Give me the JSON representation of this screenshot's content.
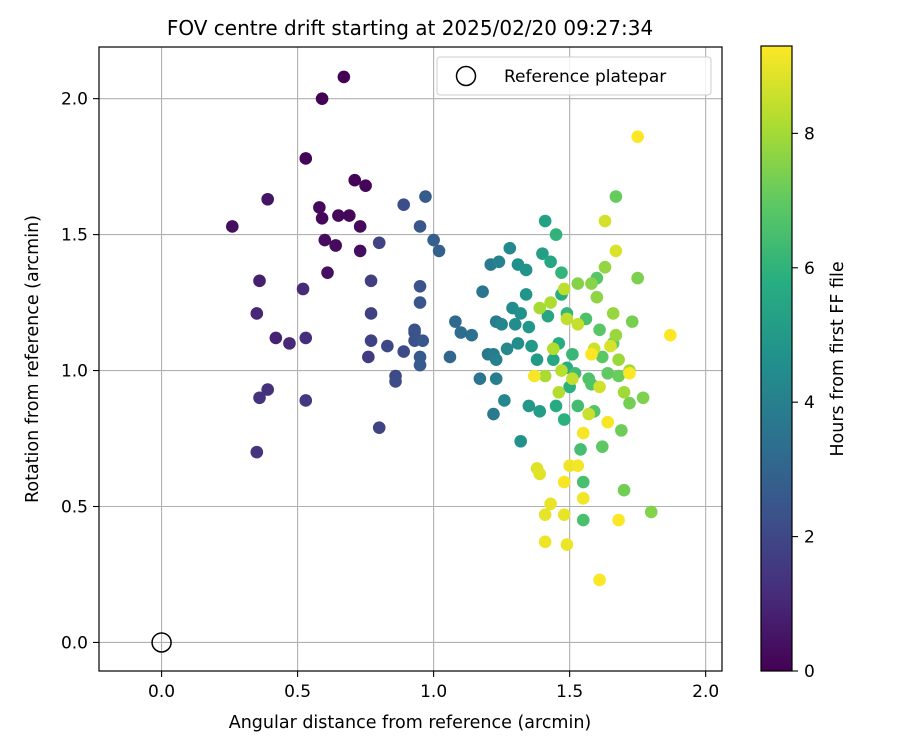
{
  "chart_data": {
    "type": "scatter",
    "title": "FOV centre drift starting at 2025/02/20 09:27:34",
    "xlabel": "Angular distance from reference (arcmin)",
    "ylabel": "Rotation from reference (arcmin)",
    "xlim": [
      -0.23,
      2.06
    ],
    "ylim": [
      -0.105,
      2.19
    ],
    "x_ticks": [
      0.0,
      0.5,
      1.0,
      1.5,
      2.0
    ],
    "x_tick_labels": [
      "0.0",
      "0.5",
      "1.0",
      "1.5",
      "2.0"
    ],
    "y_ticks": [
      0.0,
      0.5,
      1.0,
      1.5,
      2.0
    ],
    "y_tick_labels": [
      "0.0",
      "0.5",
      "1.0",
      "1.5",
      "2.0"
    ],
    "grid": true,
    "legend": {
      "placement": "top-right",
      "entries": [
        {
          "label": "Reference platepar",
          "marker": "hollow-circle",
          "color": "#000000"
        }
      ]
    },
    "reference_point": {
      "x": 0.0,
      "y": 0.0
    },
    "colorbar": {
      "label": "Hours from first FF file",
      "colormap": "viridis",
      "range": [
        0,
        9.3
      ],
      "ticks": [
        0,
        2,
        4,
        6,
        8
      ],
      "tick_labels": [
        "0",
        "2",
        "4",
        "6",
        "8"
      ]
    },
    "points": [
      [
        0.59,
        2.0,
        0.02
      ],
      [
        0.67,
        2.08,
        0.03
      ],
      [
        0.53,
        1.78,
        0.08
      ],
      [
        0.71,
        1.7,
        0.1
      ],
      [
        0.75,
        1.68,
        0.12
      ],
      [
        0.69,
        1.57,
        0.15
      ],
      [
        0.65,
        1.57,
        0.18
      ],
      [
        0.58,
        1.6,
        0.2
      ],
      [
        0.59,
        1.56,
        0.22
      ],
      [
        0.73,
        1.53,
        0.24
      ],
      [
        0.6,
        1.48,
        0.28
      ],
      [
        0.64,
        1.46,
        0.3
      ],
      [
        0.73,
        1.44,
        0.33
      ],
      [
        0.26,
        1.53,
        0.36
      ],
      [
        0.61,
        1.36,
        0.4
      ],
      [
        0.39,
        1.63,
        0.5
      ],
      [
        0.36,
        1.33,
        0.8
      ],
      [
        0.42,
        1.12,
        0.9
      ],
      [
        0.35,
        1.21,
        1.0
      ],
      [
        0.47,
        1.1,
        1.05
      ],
      [
        0.52,
        1.3,
        1.1
      ],
      [
        0.53,
        1.12,
        1.2
      ],
      [
        0.39,
        0.93,
        1.3
      ],
      [
        0.36,
        0.9,
        1.35
      ],
      [
        0.35,
        0.7,
        1.4
      ],
      [
        0.53,
        0.89,
        1.5
      ],
      [
        0.76,
        1.05,
        1.6
      ],
      [
        0.77,
        1.33,
        1.7
      ],
      [
        0.77,
        1.21,
        1.75
      ],
      [
        0.77,
        1.11,
        1.8
      ],
      [
        0.8,
        1.47,
        1.85
      ],
      [
        0.8,
        0.79,
        1.9
      ],
      [
        0.83,
        1.09,
        2.0
      ],
      [
        0.86,
        0.98,
        2.05
      ],
      [
        0.86,
        0.96,
        2.1
      ],
      [
        0.89,
        1.07,
        2.15
      ],
      [
        0.89,
        1.61,
        2.2
      ],
      [
        0.93,
        1.15,
        2.25
      ],
      [
        0.93,
        1.11,
        2.3
      ],
      [
        0.93,
        1.14,
        2.35
      ],
      [
        0.95,
        1.31,
        2.4
      ],
      [
        0.95,
        1.25,
        2.45
      ],
      [
        0.95,
        1.53,
        2.5
      ],
      [
        0.96,
        1.11,
        2.55
      ],
      [
        0.95,
        1.05,
        2.6
      ],
      [
        0.95,
        1.02,
        2.65
      ],
      [
        0.97,
        1.64,
        2.7
      ],
      [
        1.0,
        1.48,
        2.8
      ],
      [
        1.02,
        1.44,
        2.85
      ],
      [
        1.06,
        1.05,
        3.1
      ],
      [
        1.08,
        1.18,
        3.2
      ],
      [
        1.1,
        1.14,
        3.3
      ],
      [
        1.14,
        1.13,
        3.4
      ],
      [
        1.17,
        0.97,
        3.6
      ],
      [
        1.18,
        1.29,
        3.65
      ],
      [
        1.2,
        1.06,
        3.7
      ],
      [
        1.21,
        1.39,
        3.75
      ],
      [
        1.22,
        0.84,
        3.8
      ],
      [
        1.22,
        1.06,
        3.85
      ],
      [
        1.23,
        1.18,
        3.9
      ],
      [
        1.23,
        0.97,
        3.95
      ],
      [
        1.23,
        1.04,
        4.0
      ],
      [
        1.24,
        1.4,
        4.1
      ],
      [
        1.25,
        1.17,
        4.2
      ],
      [
        1.26,
        0.89,
        4.25
      ],
      [
        1.27,
        1.08,
        4.3
      ],
      [
        1.28,
        1.45,
        4.4
      ],
      [
        1.29,
        1.23,
        4.45
      ],
      [
        1.3,
        1.17,
        4.5
      ],
      [
        1.31,
        1.1,
        4.55
      ],
      [
        1.31,
        1.39,
        4.6
      ],
      [
        1.32,
        1.21,
        4.65
      ],
      [
        1.32,
        0.74,
        4.7
      ],
      [
        1.34,
        1.37,
        4.75
      ],
      [
        1.34,
        1.28,
        4.8
      ],
      [
        1.35,
        1.16,
        4.85
      ],
      [
        1.35,
        0.87,
        4.9
      ],
      [
        1.36,
        1.09,
        4.95
      ],
      [
        1.38,
        1.04,
        5.0
      ],
      [
        1.39,
        0.85,
        5.1
      ],
      [
        1.4,
        1.43,
        5.2
      ],
      [
        1.41,
        1.55,
        5.3
      ],
      [
        1.42,
        1.2,
        5.4
      ],
      [
        1.43,
        1.4,
        5.5
      ],
      [
        1.44,
        1.04,
        5.55
      ],
      [
        1.45,
        0.87,
        5.6
      ],
      [
        1.46,
        1.1,
        5.7
      ],
      [
        1.47,
        1.28,
        5.75
      ],
      [
        1.49,
        1.01,
        5.8
      ],
      [
        1.5,
        0.94,
        5.85
      ],
      [
        1.48,
        0.82,
        5.9
      ],
      [
        1.45,
        1.5,
        6.0
      ],
      [
        1.47,
        1.36,
        6.05
      ],
      [
        1.49,
        1.21,
        6.1
      ],
      [
        1.51,
        1.06,
        6.2
      ],
      [
        1.52,
        0.99,
        6.3
      ],
      [
        1.53,
        0.87,
        6.4
      ],
      [
        1.54,
        0.71,
        6.45
      ],
      [
        1.55,
        0.59,
        6.5
      ],
      [
        1.55,
        0.45,
        6.55
      ],
      [
        1.56,
        1.19,
        6.6
      ],
      [
        1.57,
        0.97,
        6.65
      ],
      [
        1.58,
        0.95,
        6.7
      ],
      [
        1.59,
        0.85,
        6.75
      ],
      [
        1.6,
        1.34,
        6.8
      ],
      [
        1.61,
        1.15,
        6.85
      ],
      [
        1.62,
        1.05,
        6.9
      ],
      [
        1.62,
        0.72,
        6.95
      ],
      [
        1.64,
        0.99,
        7.0
      ],
      [
        1.66,
        1.1,
        7.05
      ],
      [
        1.67,
        1.64,
        7.1
      ],
      [
        1.68,
        0.98,
        7.15
      ],
      [
        1.69,
        0.78,
        7.2
      ],
      [
        1.7,
        0.56,
        7.25
      ],
      [
        1.72,
        0.88,
        7.3
      ],
      [
        1.73,
        1.18,
        7.35
      ],
      [
        1.75,
        1.34,
        7.4
      ],
      [
        1.77,
        0.9,
        7.45
      ],
      [
        1.8,
        0.48,
        7.5
      ],
      [
        1.53,
        1.32,
        7.55
      ],
      [
        1.58,
        1.32,
        7.6
      ],
      [
        1.6,
        1.27,
        7.7
      ],
      [
        1.63,
        1.38,
        7.75
      ],
      [
        1.66,
        1.21,
        7.8
      ],
      [
        1.67,
        1.13,
        7.85
      ],
      [
        1.68,
        1.04,
        7.9
      ],
      [
        1.7,
        0.92,
        7.95
      ],
      [
        1.72,
        1.0,
        8.0
      ],
      [
        1.39,
        1.23,
        8.05
      ],
      [
        1.41,
        0.98,
        8.1
      ],
      [
        1.43,
        1.25,
        8.15
      ],
      [
        1.44,
        1.08,
        8.2
      ],
      [
        1.46,
        0.92,
        8.25
      ],
      [
        1.47,
        1.0,
        8.3
      ],
      [
        1.48,
        1.3,
        8.35
      ],
      [
        1.49,
        1.19,
        8.4
      ],
      [
        1.51,
        0.97,
        8.45
      ],
      [
        1.53,
        1.17,
        8.5
      ],
      [
        1.57,
        0.84,
        8.55
      ],
      [
        1.59,
        1.08,
        8.6
      ],
      [
        1.61,
        0.94,
        8.65
      ],
      [
        1.63,
        1.55,
        8.7
      ],
      [
        1.65,
        1.09,
        8.75
      ],
      [
        1.67,
        1.44,
        8.8
      ],
      [
        1.38,
        0.64,
        8.85
      ],
      [
        1.39,
        0.62,
        8.9
      ],
      [
        1.41,
        0.47,
        8.95
      ],
      [
        1.43,
        0.51,
        9.0
      ],
      [
        1.48,
        0.47,
        9.0
      ],
      [
        1.49,
        0.36,
        9.05
      ],
      [
        1.41,
        0.37,
        9.1
      ],
      [
        1.5,
        0.65,
        9.1
      ],
      [
        1.53,
        0.65,
        9.15
      ],
      [
        1.55,
        0.53,
        9.15
      ],
      [
        1.48,
        0.59,
        9.2
      ],
      [
        1.55,
        0.77,
        9.2
      ],
      [
        1.61,
        0.23,
        9.25
      ],
      [
        1.68,
        0.45,
        9.25
      ],
      [
        1.72,
        0.99,
        9.25
      ],
      [
        1.75,
        1.86,
        9.3
      ],
      [
        1.87,
        1.13,
        9.3
      ],
      [
        1.37,
        0.98,
        9.2
      ],
      [
        1.58,
        1.06,
        9.3
      ],
      [
        1.64,
        0.81,
        9.2
      ]
    ]
  }
}
